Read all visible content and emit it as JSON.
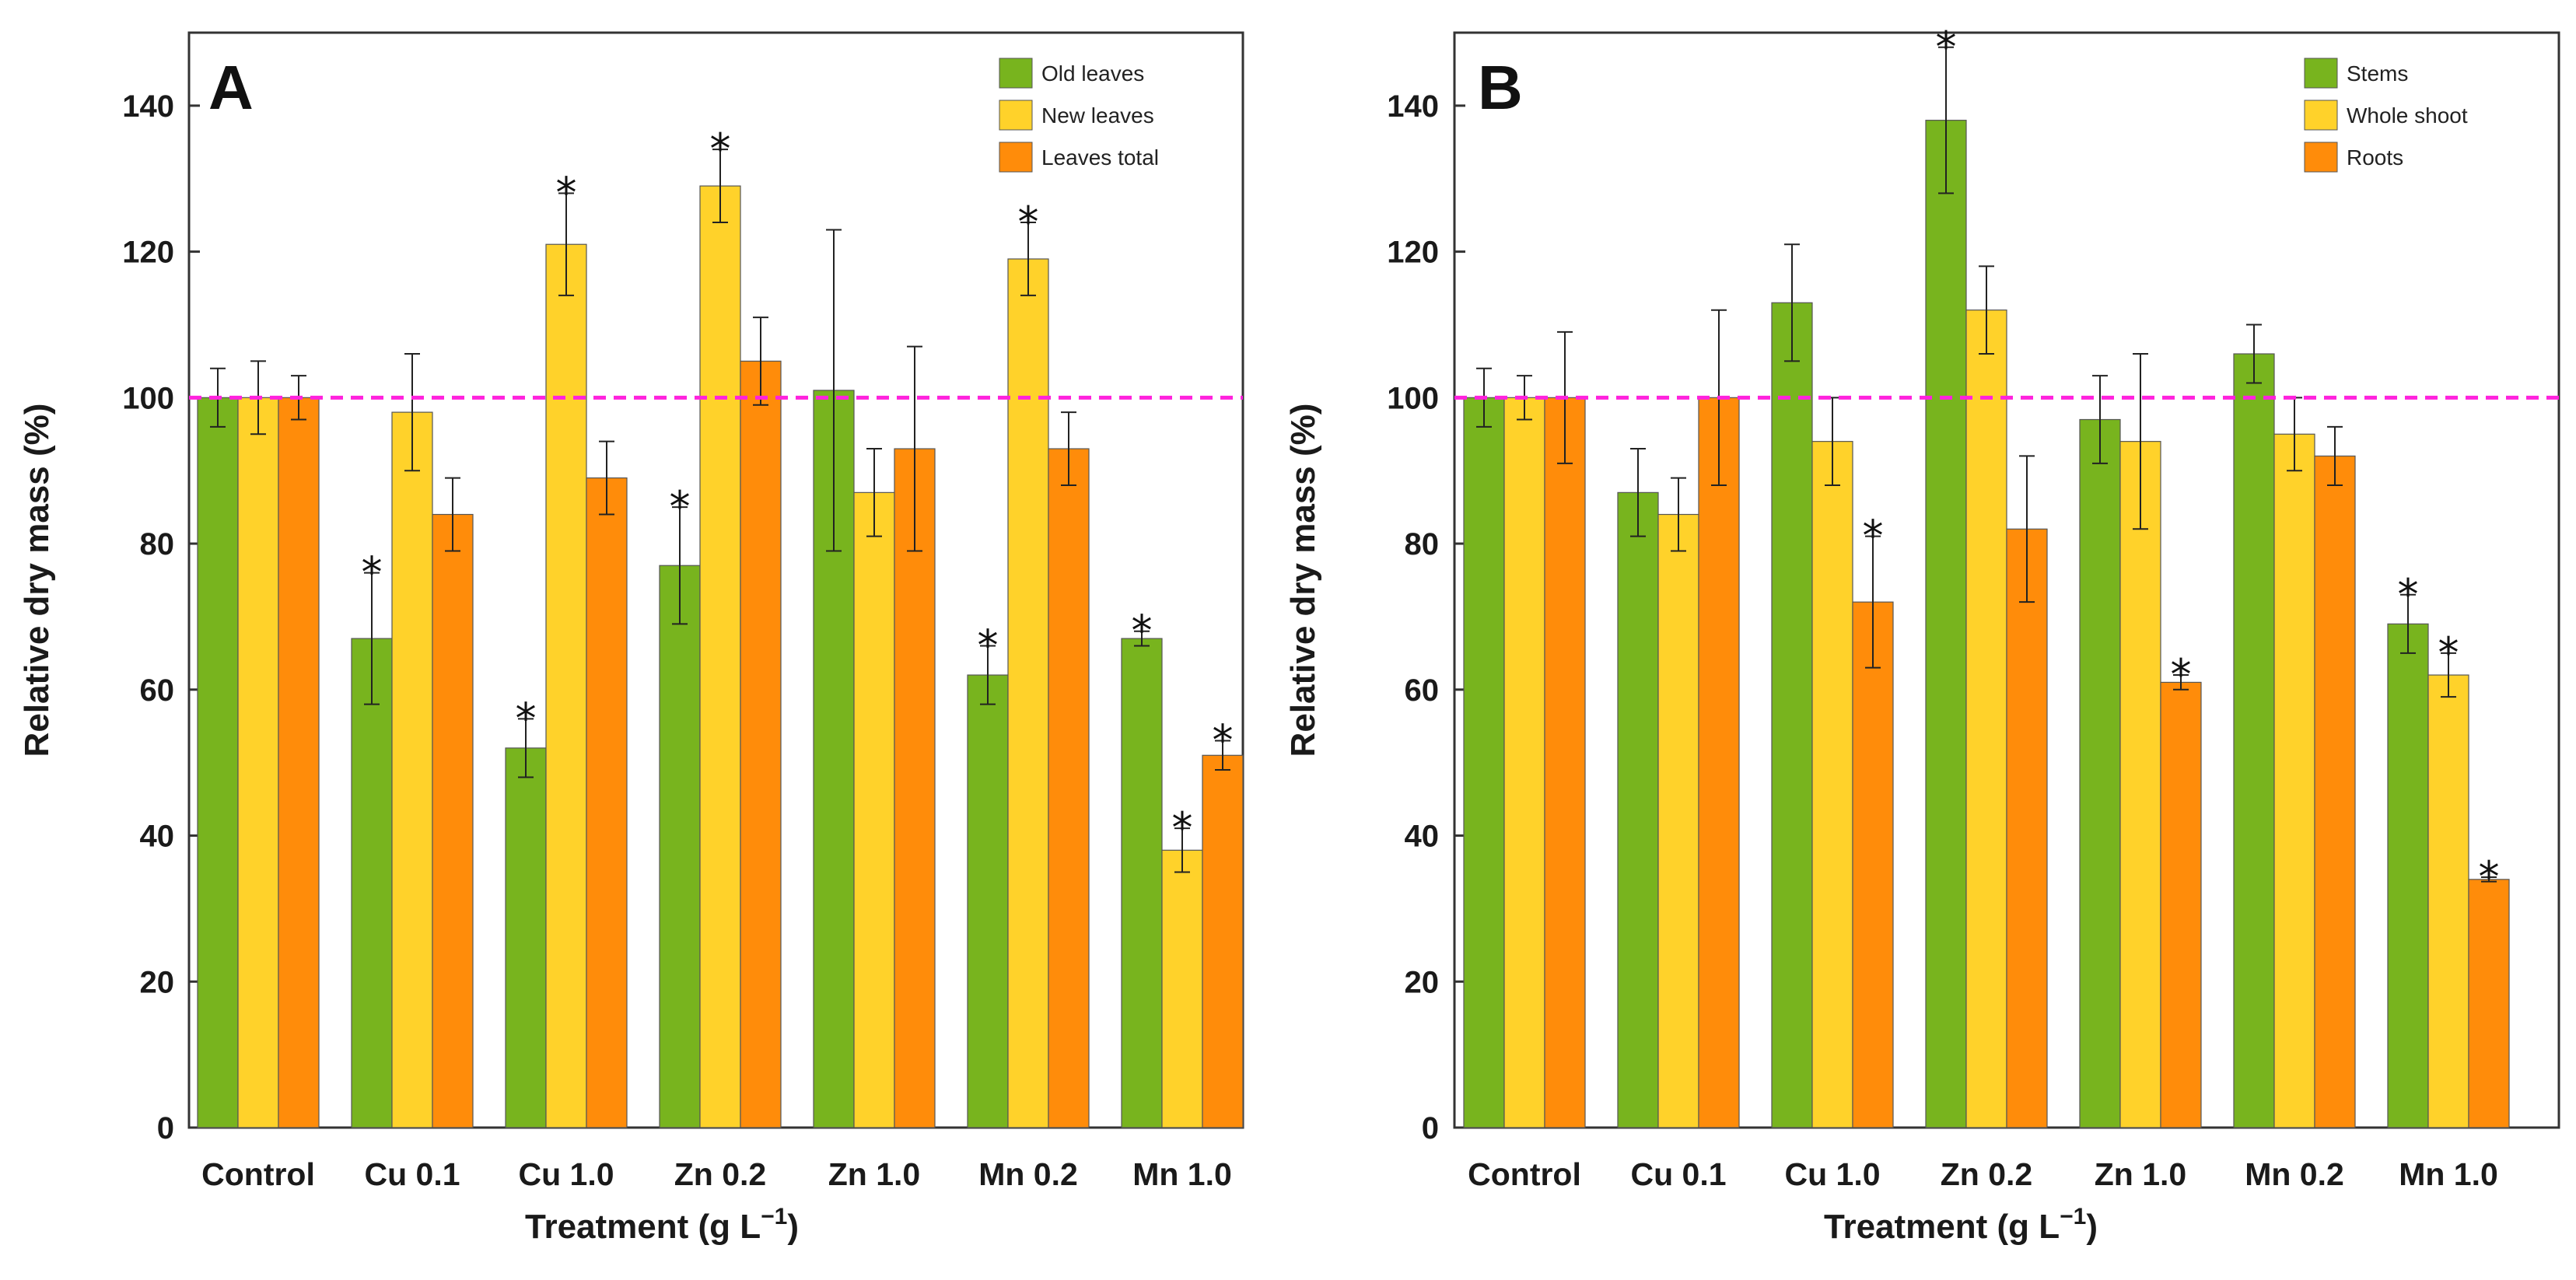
{
  "chart_data": [
    {
      "type": "bar",
      "panel_label": "A",
      "categories": [
        "Control",
        "Cu 0.1",
        "Cu 1.0",
        "Zn 0.2",
        "Zn 1.0",
        "Mn 0.2",
        "Mn 1.0"
      ],
      "series": [
        {
          "name": "Old leaves",
          "color": "#78b41e",
          "values": [
            100,
            67,
            52,
            77,
            101,
            62,
            67
          ],
          "errors": [
            4,
            9,
            4,
            8,
            22,
            4,
            1
          ],
          "significant": [
            false,
            true,
            true,
            true,
            false,
            true,
            true
          ]
        },
        {
          "name": "New leaves",
          "color": "#ffd22a",
          "values": [
            100,
            98,
            121,
            129,
            87,
            119,
            38
          ],
          "errors": [
            5,
            8,
            7,
            5,
            6,
            5,
            3
          ],
          "significant": [
            false,
            false,
            true,
            true,
            false,
            true,
            true
          ]
        },
        {
          "name": "Leaves total",
          "color": "#ff8c0a",
          "values": [
            100,
            84,
            89,
            105,
            93,
            93,
            51
          ],
          "errors": [
            3,
            5,
            5,
            6,
            14,
            5,
            2
          ],
          "significant": [
            false,
            false,
            false,
            false,
            false,
            false,
            true
          ]
        }
      ],
      "xlabel_main": "Treatment (g L",
      "xlabel_sup": "−1",
      "xlabel_end": ")",
      "ylabel": "Relative dry mass (%)",
      "ylim": [
        0,
        150
      ],
      "yticks": [
        0,
        20,
        40,
        60,
        80,
        100,
        120,
        140
      ],
      "reference_line": 100,
      "reference_color": "#ff22dd",
      "significance_marker": "*",
      "legend_position": "top-right"
    },
    {
      "type": "bar",
      "panel_label": "B",
      "categories": [
        "Control",
        "Cu 0.1",
        "Cu 1.0",
        "Zn 0.2",
        "Zn 1.0",
        "Mn 0.2",
        "Mn 1.0"
      ],
      "series": [
        {
          "name": "Stems",
          "color": "#78b41e",
          "values": [
            100,
            87,
            113,
            138,
            97,
            106,
            69
          ],
          "errors": [
            4,
            6,
            8,
            10,
            6,
            4,
            4
          ],
          "significant": [
            false,
            false,
            false,
            true,
            false,
            false,
            true
          ]
        },
        {
          "name": "Whole shoot",
          "color": "#ffd22a",
          "values": [
            100,
            84,
            94,
            112,
            94,
            95,
            62
          ],
          "errors": [
            3,
            5,
            6,
            6,
            12,
            5,
            3
          ],
          "significant": [
            false,
            false,
            false,
            false,
            false,
            false,
            true
          ]
        },
        {
          "name": "Roots",
          "color": "#ff8c0a",
          "values": [
            100,
            100,
            72,
            82,
            61,
            92,
            34
          ],
          "errors": [
            9,
            12,
            9,
            10,
            1,
            4,
            0.3
          ],
          "significant": [
            false,
            false,
            true,
            false,
            true,
            false,
            true
          ]
        }
      ],
      "xlabel_main": "Treatment (g L",
      "xlabel_sup": "−1",
      "xlabel_end": ")",
      "ylabel": "Relative dry mass (%)",
      "ylim": [
        0,
        150
      ],
      "yticks": [
        0,
        20,
        40,
        60,
        80,
        100,
        120,
        140
      ],
      "reference_line": 100,
      "reference_color": "#ff22dd",
      "significance_marker": "*",
      "legend_position": "top-right"
    }
  ]
}
